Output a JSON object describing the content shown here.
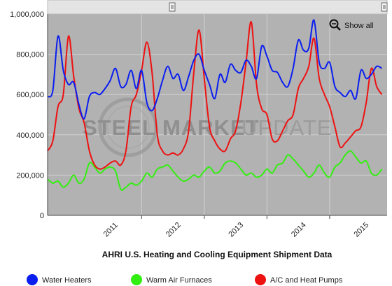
{
  "chart_data": {
    "type": "line",
    "title": "AHRI U.S. Heating and Cooling Equipment Shipment Data",
    "watermark": {
      "bold": "STEEL MARKET",
      "light": "UPDATE"
    },
    "show_all_label": "Show all",
    "y_ticks": [
      "0",
      "200,000",
      "400,000",
      "600,000",
      "800,000",
      "1,000,000"
    ],
    "ylim": [
      0,
      1000000
    ],
    "x_ticks": [
      "2011",
      "2012",
      "2013",
      "2014",
      "2015"
    ],
    "x_start": "2010-07",
    "x_end": "2015-12",
    "grid": true,
    "legend_position": "bottom",
    "colors": {
      "water_heaters": "#0a1ef0",
      "warm_air_furnaces": "#33ee11",
      "ac_heat_pumps": "#ee1111",
      "plot_bg": "#b2b2b2"
    },
    "series": [
      {
        "name": "Water Heaters",
        "color": "#0a1ef0",
        "values": [
          590000,
          620000,
          890000,
          720000,
          650000,
          660000,
          550000,
          480000,
          590000,
          610000,
          600000,
          630000,
          670000,
          730000,
          640000,
          650000,
          720000,
          630000,
          720000,
          560000,
          520000,
          580000,
          670000,
          740000,
          680000,
          700000,
          620000,
          690000,
          770000,
          800000,
          720000,
          650000,
          580000,
          700000,
          660000,
          750000,
          720000,
          710000,
          770000,
          740000,
          680000,
          840000,
          790000,
          720000,
          710000,
          660000,
          640000,
          730000,
          870000,
          820000,
          830000,
          970000,
          760000,
          730000,
          760000,
          640000,
          610000,
          590000,
          620000,
          580000,
          720000,
          680000,
          700000,
          740000,
          730000
        ]
      },
      {
        "name": "Warm Air Furnaces",
        "color": "#33ee11",
        "values": [
          180000,
          160000,
          170000,
          140000,
          160000,
          200000,
          160000,
          180000,
          260000,
          240000,
          210000,
          230000,
          240000,
          220000,
          130000,
          140000,
          160000,
          150000,
          170000,
          210000,
          190000,
          230000,
          240000,
          250000,
          220000,
          190000,
          170000,
          180000,
          200000,
          190000,
          220000,
          240000,
          210000,
          220000,
          260000,
          270000,
          260000,
          230000,
          200000,
          210000,
          190000,
          200000,
          230000,
          210000,
          250000,
          260000,
          300000,
          280000,
          250000,
          220000,
          190000,
          210000,
          250000,
          210000,
          190000,
          240000,
          260000,
          300000,
          320000,
          290000,
          260000,
          270000,
          210000,
          200000,
          230000
        ]
      },
      {
        "name": "A/C and Heat Pumps",
        "color": "#ee1111",
        "values": [
          320000,
          370000,
          540000,
          600000,
          890000,
          690000,
          530000,
          460000,
          320000,
          250000,
          230000,
          240000,
          260000,
          270000,
          250000,
          320000,
          540000,
          600000,
          720000,
          860000,
          710000,
          400000,
          320000,
          300000,
          310000,
          300000,
          330000,
          420000,
          710000,
          920000,
          680000,
          440000,
          370000,
          330000,
          320000,
          380000,
          420000,
          560000,
          760000,
          960000,
          650000,
          530000,
          500000,
          380000,
          370000,
          420000,
          470000,
          500000,
          630000,
          680000,
          740000,
          880000,
          680000,
          600000,
          540000,
          440000,
          340000,
          360000,
          390000,
          420000,
          440000,
          560000,
          730000,
          640000,
          600000
        ]
      }
    ]
  }
}
